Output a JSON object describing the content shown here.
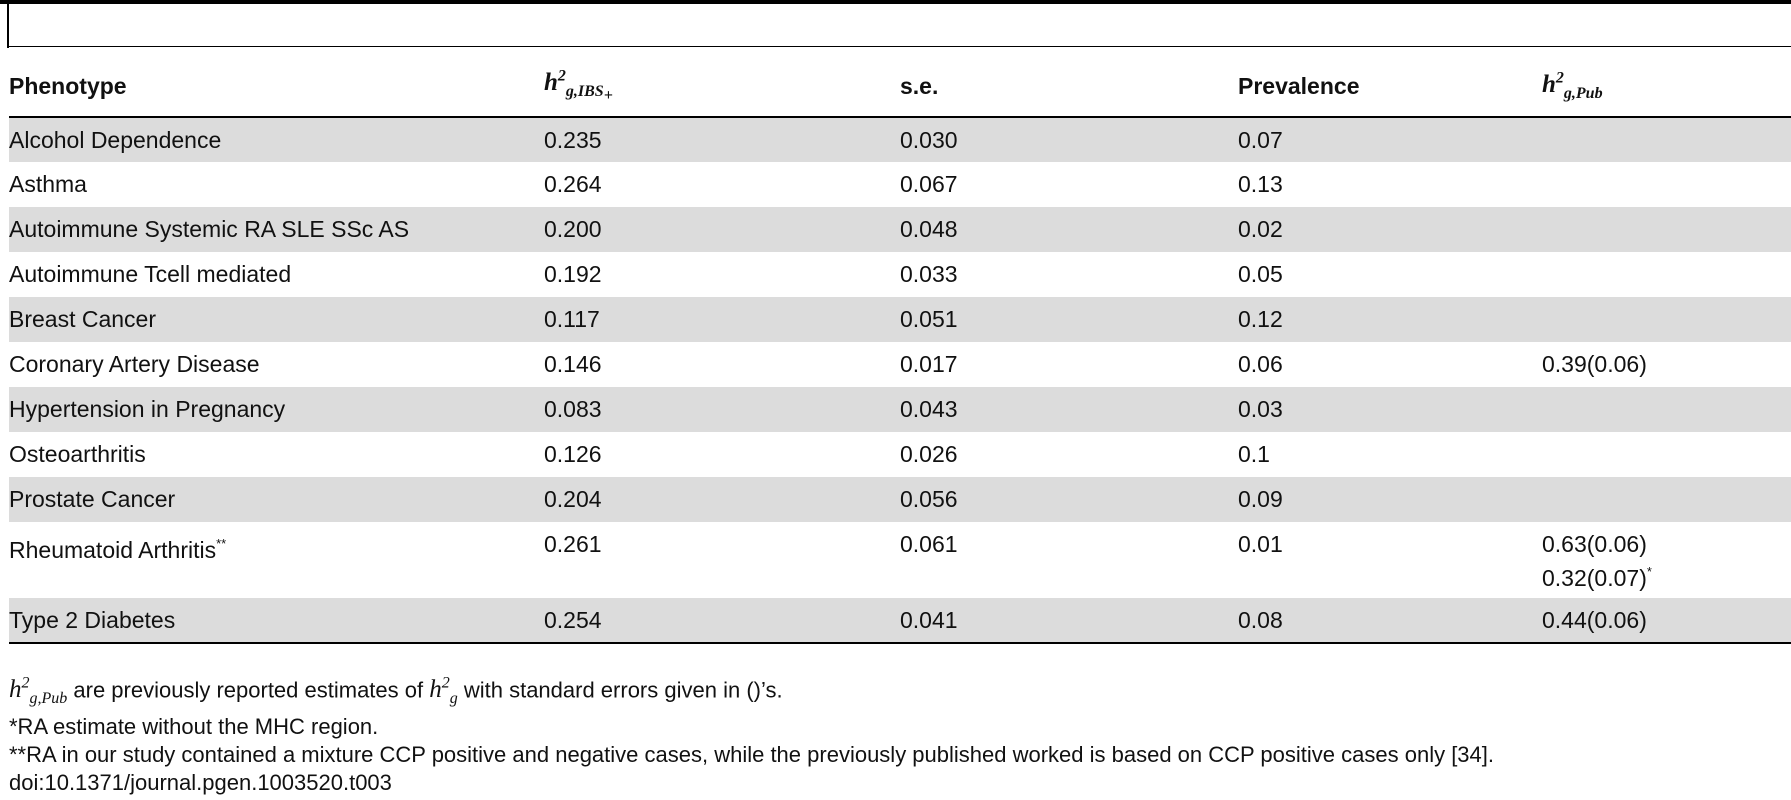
{
  "table": {
    "headers": {
      "phenotype": "Phenotype",
      "h_ibs_base": "h",
      "h_ibs_sup": "2",
      "h_ibs_sub": "g,IBS",
      "h_ibs_subsub": "+",
      "se": "s.e.",
      "prevalence": "Prevalence",
      "h_pub_base": "h",
      "h_pub_sup": "2",
      "h_pub_sub": "g,Pub"
    },
    "rows": [
      {
        "phenotype": "Alcohol Dependence",
        "h": "0.235",
        "se": "0.030",
        "prev": "0.07",
        "pub": "",
        "pub2": "",
        "mark": "",
        "pub2_mark": ""
      },
      {
        "phenotype": "Asthma",
        "h": "0.264",
        "se": "0.067",
        "prev": "0.13",
        "pub": "",
        "pub2": "",
        "mark": "",
        "pub2_mark": ""
      },
      {
        "phenotype": "Autoimmune Systemic RA SLE SSc AS",
        "h": "0.200",
        "se": "0.048",
        "prev": "0.02",
        "pub": "",
        "pub2": "",
        "mark": "",
        "pub2_mark": ""
      },
      {
        "phenotype": "Autoimmune Tcell mediated",
        "h": "0.192",
        "se": "0.033",
        "prev": "0.05",
        "pub": "",
        "pub2": "",
        "mark": "",
        "pub2_mark": ""
      },
      {
        "phenotype": "Breast Cancer",
        "h": "0.117",
        "se": "0.051",
        "prev": "0.12",
        "pub": "",
        "pub2": "",
        "mark": "",
        "pub2_mark": ""
      },
      {
        "phenotype": "Coronary Artery Disease",
        "h": "0.146",
        "se": "0.017",
        "prev": "0.06",
        "pub": "0.39(0.06)",
        "pub2": "",
        "mark": "",
        "pub2_mark": ""
      },
      {
        "phenotype": "Hypertension in Pregnancy",
        "h": "0.083",
        "se": "0.043",
        "prev": "0.03",
        "pub": "",
        "pub2": "",
        "mark": "",
        "pub2_mark": ""
      },
      {
        "phenotype": "Osteoarthritis",
        "h": "0.126",
        "se": "0.026",
        "prev": "0.1",
        "pub": "",
        "pub2": "",
        "mark": "",
        "pub2_mark": ""
      },
      {
        "phenotype": "Prostate Cancer",
        "h": "0.204",
        "se": "0.056",
        "prev": "0.09",
        "pub": "",
        "pub2": "",
        "mark": "",
        "pub2_mark": ""
      },
      {
        "phenotype": "Rheumatoid Arthritis",
        "h": "0.261",
        "se": "0.061",
        "prev": "0.01",
        "pub": "0.63(0.06)",
        "pub2": "0.32(0.07)",
        "mark": "**",
        "pub2_mark": "*"
      },
      {
        "phenotype": "Type 2 Diabetes",
        "h": "0.254",
        "se": "0.041",
        "prev": "0.08",
        "pub": "0.44(0.06)",
        "pub2": "",
        "mark": "",
        "pub2_mark": ""
      }
    ]
  },
  "footnotes": {
    "note1_pre_base": "h",
    "note1_pre_sup": "2",
    "note1_pre_sub": "g,Pub",
    "note1_mid": " are previously reported estimates of ",
    "note1_h_base": "h",
    "note1_h_sup": "2",
    "note1_h_sub": "g",
    "note1_end": " with standard errors given in ()’s.",
    "note2": "*RA estimate without the MHC region.",
    "note3": "**RA in our study contained a mixture CCP positive and negative cases, while the previously published worked is based on CCP positive cases only [34].",
    "doi": "doi:10.1371/journal.pgen.1003520.t003"
  }
}
